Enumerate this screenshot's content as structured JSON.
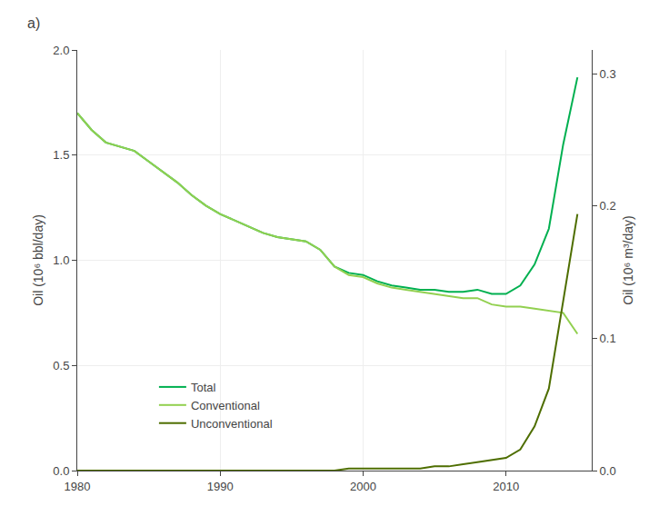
{
  "chart_data": {
    "type": "line",
    "annotations": [
      "a)"
    ],
    "ylabel": "Oil (10⁶ bbl/day)",
    "y2label": "Oil (10⁶ m³/day)",
    "x": [
      1980,
      1981,
      1982,
      1983,
      1984,
      1985,
      1986,
      1987,
      1988,
      1989,
      1990,
      1991,
      1992,
      1993,
      1994,
      1995,
      1996,
      1997,
      1998,
      1999,
      2000,
      2001,
      2002,
      2003,
      2004,
      2005,
      2006,
      2007,
      2008,
      2009,
      2010,
      2011,
      2012,
      2013,
      2014,
      2015
    ],
    "series": [
      {
        "name": "Total",
        "color": "#00b050",
        "values": [
          1.7,
          1.62,
          1.56,
          1.54,
          1.52,
          1.47,
          1.42,
          1.37,
          1.31,
          1.26,
          1.22,
          1.19,
          1.16,
          1.13,
          1.11,
          1.1,
          1.09,
          1.05,
          0.97,
          0.94,
          0.93,
          0.9,
          0.88,
          0.87,
          0.86,
          0.86,
          0.85,
          0.85,
          0.86,
          0.84,
          0.84,
          0.88,
          0.98,
          1.15,
          1.55,
          1.87
        ]
      },
      {
        "name": "Conventional",
        "color": "#92d050",
        "values": [
          1.7,
          1.62,
          1.56,
          1.54,
          1.52,
          1.47,
          1.42,
          1.37,
          1.31,
          1.26,
          1.22,
          1.19,
          1.16,
          1.13,
          1.11,
          1.1,
          1.09,
          1.05,
          0.97,
          0.93,
          0.92,
          0.89,
          0.87,
          0.86,
          0.85,
          0.84,
          0.83,
          0.82,
          0.82,
          0.79,
          0.78,
          0.78,
          0.77,
          0.76,
          0.75,
          0.65
        ]
      },
      {
        "name": "Unconventional",
        "color": "#4e6e00",
        "values": [
          0.0,
          0.0,
          0.0,
          0.0,
          0.0,
          0.0,
          0.0,
          0.0,
          0.0,
          0.0,
          0.0,
          0.0,
          0.0,
          0.0,
          0.0,
          0.0,
          0.0,
          0.0,
          0.0,
          0.01,
          0.01,
          0.01,
          0.01,
          0.01,
          0.01,
          0.02,
          0.02,
          0.03,
          0.04,
          0.05,
          0.06,
          0.1,
          0.21,
          0.39,
          0.8,
          1.22
        ]
      }
    ],
    "xlim": [
      1980,
      2016
    ],
    "xticks": [
      1980,
      1990,
      2000,
      2010
    ],
    "ylim": [
      0,
      2
    ],
    "yticks": [
      {
        "value": 0,
        "label": "0.0"
      },
      0.5,
      {
        "value": 1,
        "label": "1.0"
      },
      1.5,
      {
        "value": 2,
        "label": "2.0"
      }
    ],
    "y2lim": [
      0,
      0.318
    ],
    "y2ticks": [
      {
        "value": 0,
        "label": "0.0"
      },
      0.1,
      0.2,
      0.3
    ],
    "grid": true,
    "legend": "lower left"
  }
}
